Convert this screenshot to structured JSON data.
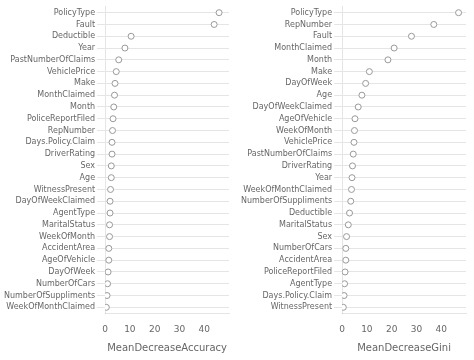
{
  "chart_data": [
    {
      "type": "scatter",
      "xlabel": "MeanDecreaseAccuracy",
      "categories": [
        "PolicyType",
        "Fault",
        "Deductible",
        "Year",
        "PastNumberOfClaims",
        "VehiclePrice",
        "Make",
        "MonthClaimed",
        "Month",
        "PoliceReportFiled",
        "RepNumber",
        "Days.Policy.Claim",
        "DriverRating",
        "Sex",
        "Age",
        "WitnessPresent",
        "DayOfWeekClaimed",
        "AgentType",
        "MaritalStatus",
        "WeekOfMonth",
        "AccidentArea",
        "AgeOfVehicle",
        "DayOfWeek",
        "NumberOfCars",
        "NumberOfSuppliments",
        "WeekOfMonthClaimed"
      ],
      "values": [
        46.0,
        44.0,
        10.5,
        8.0,
        5.5,
        4.5,
        4.0,
        3.8,
        3.5,
        3.2,
        3.0,
        2.8,
        2.8,
        2.5,
        2.5,
        2.2,
        2.0,
        2.0,
        1.8,
        1.8,
        1.5,
        1.5,
        1.2,
        1.0,
        0.8,
        0.5
      ],
      "xlim": [
        0,
        50
      ],
      "xticks": [
        0,
        10,
        20,
        30,
        40
      ],
      "orientation": "horizontal",
      "grid": "y",
      "color": "#999999",
      "marker": "circle"
    },
    {
      "type": "scatter",
      "xlabel": "MeanDecreaseGini",
      "categories": [
        "PolicyType",
        "RepNumber",
        "Fault",
        "MonthClaimed",
        "Month",
        "Make",
        "DayOfWeek",
        "Age",
        "DayOfWeekClaimed",
        "AgeOfVehicle",
        "WeekOfMonth",
        "VehiclePrice",
        "PastNumberOfClaims",
        "DriverRating",
        "Year",
        "WeekOfMonthClaimed",
        "NumberOfSuppliments",
        "Deductible",
        "MaritalStatus",
        "Sex",
        "NumberOfCars",
        "AccidentArea",
        "PoliceReportFiled",
        "AgentType",
        "Days.Policy.Claim",
        "WitnessPresent"
      ],
      "values": [
        47.0,
        37.0,
        28.0,
        21.0,
        18.5,
        11.0,
        9.5,
        8.0,
        6.5,
        5.2,
        5.0,
        4.8,
        4.5,
        4.2,
        4.0,
        3.8,
        3.5,
        3.0,
        2.5,
        1.8,
        1.5,
        1.5,
        1.2,
        1.0,
        0.8,
        0.5
      ],
      "xlim": [
        0,
        50
      ],
      "xticks": [
        0,
        10,
        20,
        30,
        40
      ],
      "orientation": "horizontal",
      "grid": "y",
      "color": "#999999",
      "marker": "circle"
    }
  ]
}
